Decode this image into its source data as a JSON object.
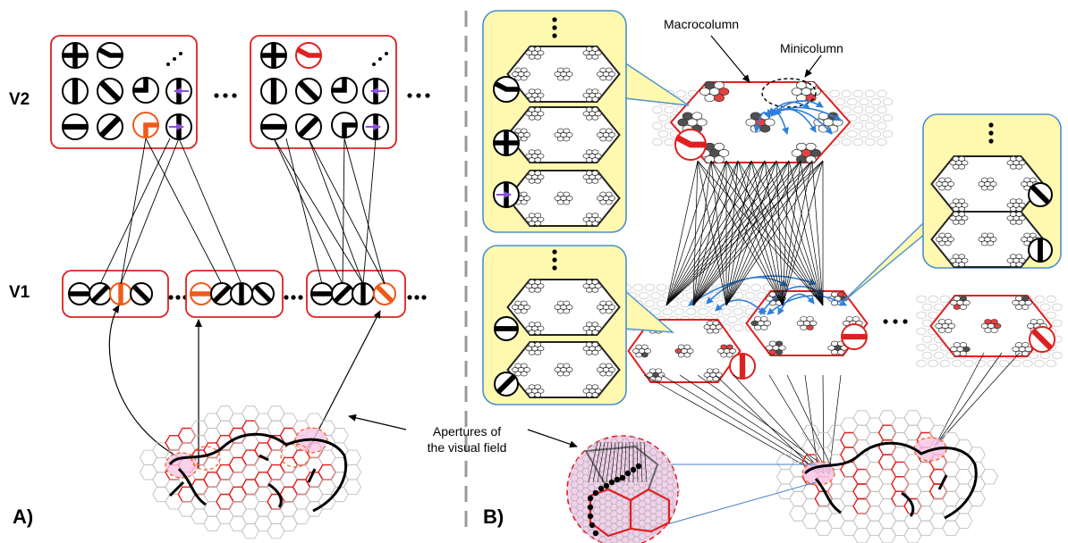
{
  "panel_a": {
    "label": "A)",
    "level_v2": "V2",
    "level_v1": "V1"
  },
  "panel_b": {
    "label": "B)",
    "macrocolumn_label": "Macrocolumn",
    "minicolumn_label": "Minicolumn"
  },
  "apertures": {
    "line1": "Apertures of",
    "line2": "the visual field"
  },
  "colors": {
    "red": "#e02020",
    "orange": "#ef5a1a",
    "callout_fill": "#fff9b0",
    "callout_border": "#4a8fd0",
    "connection_blue": "#2f7fd8",
    "purple_arrow": "#8a4fe0",
    "active_unit": "#e84040",
    "dark_unit": "#505050",
    "aperture_fill": "#f6c6e6"
  },
  "icons": [
    "ellipsis-icon",
    "diagonal-ellipsis-icon",
    "oriented-edge-detector-icon",
    "corner-detector-icon",
    "motion-arrow-icon",
    "cursor-arrow-icon"
  ]
}
